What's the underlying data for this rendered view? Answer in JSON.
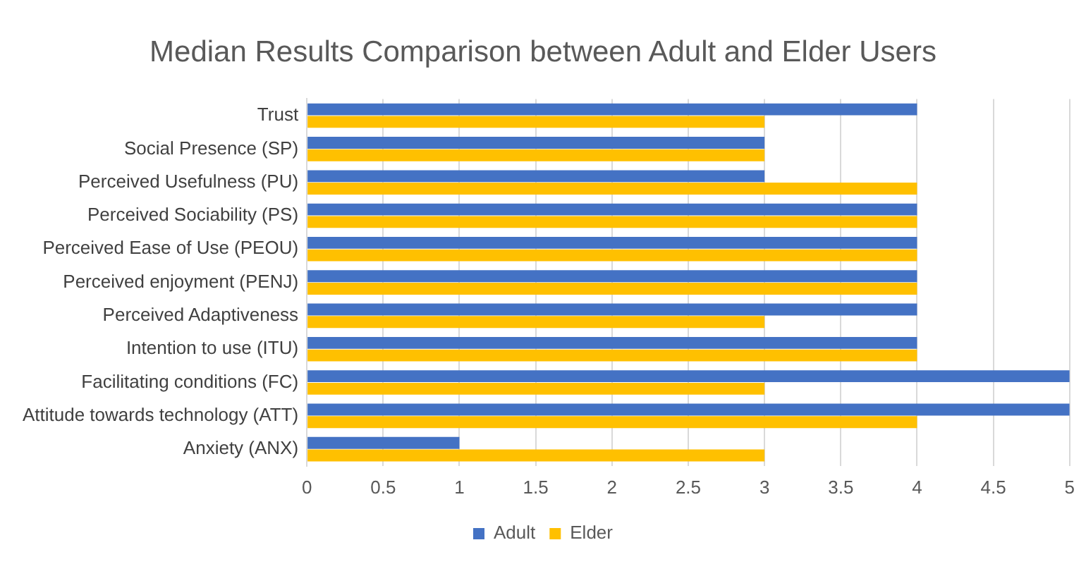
{
  "chart_data": {
    "type": "bar",
    "orientation": "horizontal",
    "title": "Median Results Comparison between Adult and Elder Users",
    "categories": [
      "Trust",
      "Social Presence (SP)",
      "Perceived Usefulness (PU)",
      "Perceived Sociability (PS)",
      "Perceived Ease of Use (PEOU)",
      "Perceived enjoyment (PENJ)",
      "Perceived Adaptiveness",
      "Intention to use (ITU)",
      "Facilitating conditions (FC)",
      "Attitude towards technology (ATT)",
      "Anxiety (ANX)"
    ],
    "series": [
      {
        "name": "Adult",
        "color": "#4472c4",
        "values": [
          4,
          3,
          3,
          4,
          4,
          4,
          4,
          4,
          5,
          5,
          1
        ]
      },
      {
        "name": "Elder",
        "color": "#ffc000",
        "values": [
          3,
          3,
          4,
          4,
          4,
          4,
          3,
          4,
          3,
          4,
          3
        ]
      }
    ],
    "xlim": [
      0,
      5
    ],
    "xticks": [
      0,
      0.5,
      1,
      1.5,
      2,
      2.5,
      3,
      3.5,
      4,
      4.5,
      5
    ],
    "grid": "x",
    "legend": "bottom"
  }
}
